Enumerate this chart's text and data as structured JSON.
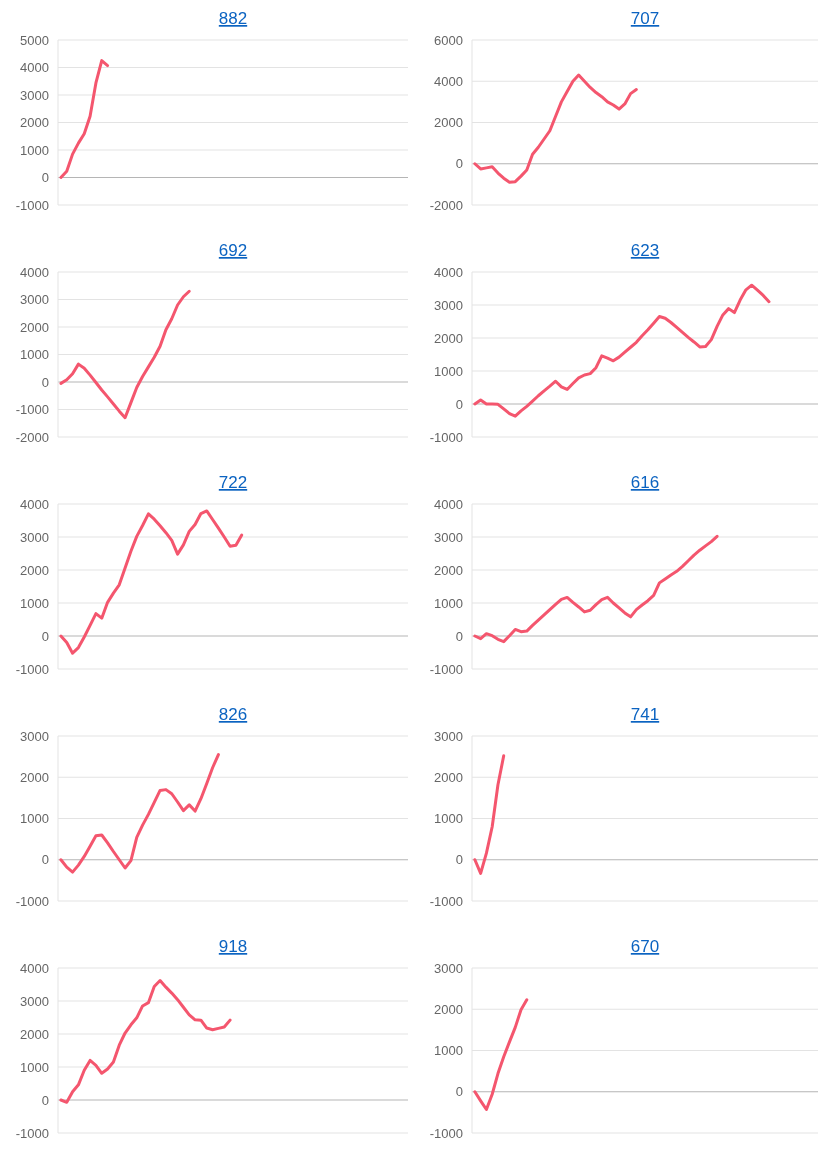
{
  "chart_data": [
    {
      "type": "line",
      "title": "882",
      "categories": [
        null,
        null,
        null,
        null,
        null,
        null,
        null,
        null,
        null,
        null,
        null,
        null,
        null,
        null,
        null,
        null,
        null,
        null,
        null,
        null,
        null,
        null,
        null,
        null,
        null,
        null,
        null,
        null,
        null,
        null,
        null,
        null,
        null,
        null,
        null,
        null,
        null,
        null,
        null,
        null,
        null,
        null,
        null,
        null,
        null,
        null,
        null,
        null,
        null,
        null,
        null,
        null,
        null,
        null,
        null,
        null,
        null,
        null,
        null,
        null
      ],
      "color": "#f4566e",
      "ylim": [
        -1000,
        5000
      ],
      "yticks": [
        -1000,
        0,
        1000,
        2000,
        3000,
        4000,
        5000
      ],
      "grid": "y",
      "tick_labels": "y",
      "values": [
        0,
        230,
        850,
        1250,
        1590,
        2230,
        3440,
        4250,
        4070,
        null,
        null,
        null,
        null,
        null,
        null,
        null,
        null,
        null,
        null,
        null,
        null,
        null,
        null,
        null,
        null,
        null,
        null,
        null,
        null,
        null,
        null,
        null,
        null,
        null,
        null,
        null,
        null,
        null,
        null,
        null,
        null,
        null,
        null,
        null,
        null,
        null,
        null,
        null,
        null,
        null,
        null,
        null,
        null,
        null,
        null,
        null,
        null,
        null,
        null,
        null
      ]
    },
    {
      "type": "line",
      "title": "707",
      "categories": [
        null,
        null,
        null,
        null,
        null,
        null,
        null,
        null,
        null,
        null,
        null,
        null,
        null,
        null,
        null,
        null,
        null,
        null,
        null,
        null,
        null,
        null,
        null,
        null,
        null,
        null,
        null,
        null,
        null,
        null,
        null,
        null,
        null,
        null,
        null,
        null,
        null,
        null,
        null,
        null,
        null,
        null,
        null,
        null,
        null,
        null,
        null,
        null,
        null,
        null,
        null,
        null,
        null,
        null,
        null,
        null,
        null,
        null,
        null,
        null
      ],
      "color": "#f4566e",
      "ylim": [
        -2000,
        6000
      ],
      "yticks": [
        -2000,
        0,
        2000,
        4000,
        6000
      ],
      "grid": "y",
      "tick_labels": "y",
      "values": [
        0,
        -250,
        -200,
        -150,
        -450,
        -700,
        -900,
        -870,
        -600,
        -300,
        460,
        800,
        1200,
        1600,
        2300,
        3000,
        3500,
        4000,
        4300,
        4000,
        3700,
        3450,
        3250,
        3000,
        2850,
        2650,
        2900,
        3400,
        3600,
        null,
        null,
        null,
        null,
        null,
        null,
        null,
        null,
        null,
        null,
        null,
        null,
        null,
        null,
        null,
        null,
        null,
        null,
        null,
        null,
        null,
        null,
        null,
        null,
        null,
        null,
        null,
        null,
        null,
        null,
        null
      ]
    },
    {
      "type": "line",
      "title": "692",
      "categories": [
        null,
        null,
        null,
        null,
        null,
        null,
        null,
        null,
        null,
        null,
        null,
        null,
        null,
        null,
        null,
        null,
        null,
        null,
        null,
        null,
        null,
        null,
        null,
        null,
        null,
        null,
        null,
        null,
        null,
        null,
        null,
        null,
        null,
        null,
        null,
        null,
        null,
        null,
        null,
        null,
        null,
        null,
        null,
        null,
        null,
        null,
        null,
        null,
        null,
        null,
        null,
        null,
        null,
        null,
        null,
        null,
        null,
        null,
        null,
        null
      ],
      "color": "#f4566e",
      "ylim": [
        -2000,
        4000
      ],
      "yticks": [
        -2000,
        -1000,
        0,
        1000,
        2000,
        3000,
        4000
      ],
      "grid": "y",
      "tick_labels": "y",
      "values": [
        -50,
        80,
        300,
        650,
        500,
        250,
        -20,
        -290,
        -540,
        -800,
        -1060,
        -1300,
        -750,
        -200,
        200,
        550,
        900,
        1300,
        1900,
        2300,
        2800,
        3100,
        3300,
        null,
        null,
        null,
        null,
        null,
        null,
        null,
        null,
        null,
        null,
        null,
        null,
        null,
        null,
        null,
        null,
        null,
        null,
        null,
        null,
        null,
        null,
        null,
        null,
        null,
        null,
        null,
        null,
        null,
        null,
        null,
        null,
        null,
        null,
        null,
        null,
        null
      ]
    },
    {
      "type": "line",
      "title": "623",
      "categories": [
        null,
        null,
        null,
        null,
        null,
        null,
        null,
        null,
        null,
        null,
        null,
        null,
        null,
        null,
        null,
        null,
        null,
        null,
        null,
        null,
        null,
        null,
        null,
        null,
        null,
        null,
        null,
        null,
        null,
        null,
        null,
        null,
        null,
        null,
        null,
        null,
        null,
        null,
        null,
        null,
        null,
        null,
        null,
        null,
        null,
        null,
        null,
        null,
        null,
        null,
        null,
        null,
        null,
        null,
        null,
        null,
        null,
        null,
        null,
        null
      ],
      "color": "#f4566e",
      "ylim": [
        -1000,
        4000
      ],
      "yticks": [
        -1000,
        0,
        1000,
        2000,
        3000,
        4000
      ],
      "grid": "y",
      "tick_labels": "y",
      "values": [
        0,
        120,
        0,
        0,
        -10,
        -150,
        -290,
        -370,
        -210,
        -70,
        90,
        250,
        400,
        540,
        690,
        520,
        440,
        620,
        790,
        880,
        920,
        1100,
        1460,
        1390,
        1310,
        1420,
        1570,
        1720,
        1870,
        2070,
        2250,
        2450,
        2650,
        2600,
        2470,
        2320,
        2170,
        2020,
        1880,
        1730,
        1740,
        1950,
        2350,
        2700,
        2890,
        2770,
        3150,
        3460,
        3600,
        3450,
        3290,
        3100,
        null,
        null,
        null,
        null,
        null,
        null,
        null,
        null
      ]
    },
    {
      "type": "line",
      "title": "722",
      "categories": [
        null,
        null,
        null,
        null,
        null,
        null,
        null,
        null,
        null,
        null,
        null,
        null,
        null,
        null,
        null,
        null,
        null,
        null,
        null,
        null,
        null,
        null,
        null,
        null,
        null,
        null,
        null,
        null,
        null,
        null,
        null,
        null,
        null,
        null,
        null,
        null,
        null,
        null,
        null,
        null,
        null,
        null,
        null,
        null,
        null,
        null,
        null,
        null,
        null,
        null,
        null,
        null,
        null,
        null,
        null,
        null,
        null,
        null,
        null,
        null
      ],
      "color": "#f4566e",
      "ylim": [
        -1000,
        4000
      ],
      "yticks": [
        -1000,
        0,
        1000,
        2000,
        3000,
        4000
      ],
      "grid": "y",
      "tick_labels": "y",
      "values": [
        0,
        -200,
        -520,
        -350,
        -30,
        320,
        680,
        540,
        1020,
        1300,
        1550,
        2060,
        2570,
        3020,
        3350,
        3700,
        3540,
        3340,
        3130,
        2900,
        2480,
        2760,
        3170,
        3380,
        3710,
        3790,
        3530,
        3270,
        3000,
        2720,
        2750,
        3060,
        null,
        null,
        null,
        null,
        null,
        null,
        null,
        null,
        null,
        null,
        null,
        null,
        null,
        null,
        null,
        null,
        null,
        null,
        null,
        null,
        null,
        null,
        null,
        null,
        null,
        null,
        null,
        null
      ]
    },
    {
      "type": "line",
      "title": "616",
      "categories": [
        null,
        null,
        null,
        null,
        null,
        null,
        null,
        null,
        null,
        null,
        null,
        null,
        null,
        null,
        null,
        null,
        null,
        null,
        null,
        null,
        null,
        null,
        null,
        null,
        null,
        null,
        null,
        null,
        null,
        null,
        null,
        null,
        null,
        null,
        null,
        null,
        null,
        null,
        null,
        null,
        null,
        null,
        null,
        null,
        null,
        null,
        null,
        null,
        null,
        null,
        null,
        null,
        null,
        null,
        null,
        null,
        null,
        null,
        null,
        null
      ],
      "color": "#f4566e",
      "ylim": [
        -1000,
        4000
      ],
      "yticks": [
        -1000,
        0,
        1000,
        2000,
        3000,
        4000
      ],
      "grid": "y",
      "tick_labels": "y",
      "values": [
        0,
        -80,
        70,
        10,
        -100,
        -170,
        10,
        200,
        130,
        150,
        320,
        480,
        640,
        800,
        960,
        1110,
        1170,
        1020,
        880,
        730,
        780,
        950,
        1100,
        1170,
        1000,
        850,
        700,
        580,
        800,
        940,
        1070,
        1230,
        1610,
        1730,
        1850,
        1960,
        2110,
        2280,
        2450,
        2600,
        2730,
        2860,
        3020,
        null,
        null,
        null,
        null,
        null,
        null,
        null,
        null,
        null,
        null,
        null,
        null,
        null,
        null,
        null,
        null,
        null
      ]
    },
    {
      "type": "line",
      "title": "826",
      "categories": [
        null,
        null,
        null,
        null,
        null,
        null,
        null,
        null,
        null,
        null,
        null,
        null,
        null,
        null,
        null,
        null,
        null,
        null,
        null,
        null,
        null,
        null,
        null,
        null,
        null,
        null,
        null,
        null,
        null,
        null,
        null,
        null,
        null,
        null,
        null,
        null,
        null,
        null,
        null,
        null,
        null,
        null,
        null,
        null,
        null,
        null,
        null,
        null,
        null,
        null,
        null,
        null,
        null,
        null,
        null,
        null,
        null,
        null,
        null,
        null
      ],
      "color": "#f4566e",
      "ylim": [
        -1000,
        3000
      ],
      "yticks": [
        -1000,
        0,
        1000,
        2000,
        3000
      ],
      "grid": "y",
      "tick_labels": "y",
      "values": [
        0,
        -180,
        -300,
        -130,
        80,
        330,
        580,
        600,
        410,
        200,
        0,
        -200,
        -20,
        540,
        840,
        1100,
        1390,
        1680,
        1700,
        1600,
        1400,
        1190,
        1330,
        1180,
        1480,
        1850,
        2230,
        2550,
        null,
        null,
        null,
        null,
        null,
        null,
        null,
        null,
        null,
        null,
        null,
        null,
        null,
        null,
        null,
        null,
        null,
        null,
        null,
        null,
        null,
        null,
        null,
        null,
        null,
        null,
        null,
        null,
        null,
        null,
        null,
        null
      ]
    },
    {
      "type": "line",
      "title": "741",
      "categories": [
        null,
        null,
        null,
        null,
        null,
        null,
        null,
        null,
        null,
        null,
        null,
        null,
        null,
        null,
        null,
        null,
        null,
        null,
        null,
        null,
        null,
        null,
        null,
        null,
        null,
        null,
        null,
        null,
        null,
        null,
        null,
        null,
        null,
        null,
        null,
        null,
        null,
        null,
        null,
        null,
        null,
        null,
        null,
        null,
        null,
        null,
        null,
        null,
        null,
        null,
        null,
        null,
        null,
        null,
        null,
        null,
        null,
        null,
        null,
        null
      ],
      "color": "#f4566e",
      "ylim": [
        -1000,
        3000
      ],
      "yticks": [
        -1000,
        0,
        1000,
        2000,
        3000
      ],
      "grid": "y",
      "tick_labels": "y",
      "values": [
        0,
        -330,
        160,
        800,
        1820,
        2520,
        null,
        null,
        null,
        null,
        null,
        null,
        null,
        null,
        null,
        null,
        null,
        null,
        null,
        null,
        null,
        null,
        null,
        null,
        null,
        null,
        null,
        null,
        null,
        null,
        null,
        null,
        null,
        null,
        null,
        null,
        null,
        null,
        null,
        null,
        null,
        null,
        null,
        null,
        null,
        null,
        null,
        null,
        null,
        null,
        null,
        null,
        null,
        null,
        null,
        null,
        null,
        null,
        null,
        null
      ]
    },
    {
      "type": "line",
      "title": "918",
      "categories": [
        null,
        null,
        null,
        null,
        null,
        null,
        null,
        null,
        null,
        null,
        null,
        null,
        null,
        null,
        null,
        null,
        null,
        null,
        null,
        null,
        null,
        null,
        null,
        null,
        null,
        null,
        null,
        null,
        null,
        null,
        null,
        null,
        null,
        null,
        null,
        null,
        null,
        null,
        null,
        null,
        null,
        null,
        null,
        null,
        null,
        null,
        null,
        null,
        null,
        null,
        null,
        null,
        null,
        null,
        null,
        null,
        null,
        null,
        null,
        null
      ],
      "color": "#f4566e",
      "ylim": [
        -1000,
        4000
      ],
      "yticks": [
        -1000,
        0,
        1000,
        2000,
        3000,
        4000
      ],
      "grid": "y",
      "tick_labels": "y",
      "values": [
        0,
        -70,
        250,
        460,
        900,
        1200,
        1050,
        810,
        940,
        1150,
        1660,
        2030,
        2280,
        2490,
        2850,
        2950,
        3440,
        3620,
        3420,
        3240,
        3040,
        2810,
        2580,
        2430,
        2420,
        2180,
        2130,
        2170,
        2210,
        2420,
        null,
        null,
        null,
        null,
        null,
        null,
        null,
        null,
        null,
        null,
        null,
        null,
        null,
        null,
        null,
        null,
        null,
        null,
        null,
        null,
        null,
        null,
        null,
        null,
        null,
        null,
        null,
        null,
        null,
        null
      ]
    },
    {
      "type": "line",
      "title": "670",
      "categories": [
        null,
        null,
        null,
        null,
        null,
        null,
        null,
        null,
        null,
        null,
        null,
        null,
        null,
        null,
        null,
        null,
        null,
        null,
        null,
        null,
        null,
        null,
        null,
        null,
        null,
        null,
        null,
        null,
        null,
        null,
        null,
        null,
        null,
        null,
        null,
        null,
        null,
        null,
        null,
        null,
        null,
        null,
        null,
        null,
        null,
        null,
        null,
        null,
        null,
        null,
        null,
        null,
        null,
        null,
        null,
        null,
        null,
        null,
        null,
        null
      ],
      "color": "#f4566e",
      "ylim": [
        -1000,
        3000
      ],
      "yticks": [
        -1000,
        0,
        1000,
        2000,
        3000
      ],
      "grid": "y",
      "tick_labels": "y",
      "values": [
        0,
        -220,
        -430,
        -60,
        440,
        850,
        1210,
        1560,
        1990,
        2230,
        null,
        null,
        null,
        null,
        null,
        null,
        null,
        null,
        null,
        null,
        null,
        null,
        null,
        null,
        null,
        null,
        null,
        null,
        null,
        null,
        null,
        null,
        null,
        null,
        null,
        null,
        null,
        null,
        null,
        null,
        null,
        null,
        null,
        null,
        null,
        null,
        null,
        null,
        null,
        null,
        null,
        null,
        null,
        null,
        null,
        null,
        null,
        null,
        null,
        null
      ]
    }
  ]
}
